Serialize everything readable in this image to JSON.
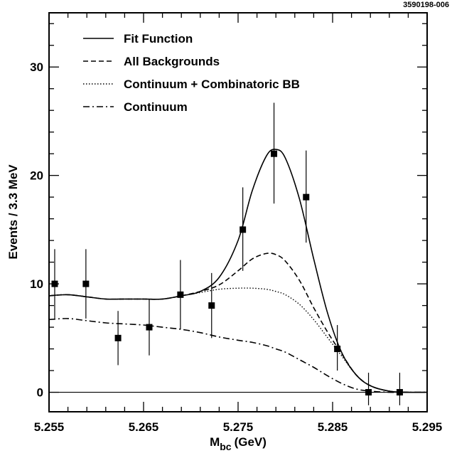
{
  "figure_id": "3590198-006",
  "chart_data": {
    "type": "scatter",
    "title": "",
    "xlabel_main": "M",
    "xlabel_sub": "bc",
    "xlabel_unit": "(GeV)",
    "ylabel": "Events / 3.3 MeV",
    "xlim": [
      5.255,
      5.295
    ],
    "ylim": [
      -1.8,
      35
    ],
    "x_tick_labels": [
      "5.255",
      "5.265",
      "5.275",
      "5.285",
      "5.295"
    ],
    "y_tick_labels": [
      "0",
      "10",
      "20",
      "30"
    ],
    "legend": [
      {
        "label": "Fit Function",
        "style": "solid"
      },
      {
        "label": "All Backgrounds",
        "style": "dashed"
      },
      {
        "label": "Continuum + Combinatoric BB",
        "style": "dotted"
      },
      {
        "label": "Continuum",
        "style": "dashdot"
      }
    ],
    "data_points": [
      {
        "x": 5.2556,
        "y": 10,
        "err_lo": 3.2,
        "err_hi": 3.2
      },
      {
        "x": 5.2589,
        "y": 10,
        "err_lo": 3.2,
        "err_hi": 3.2
      },
      {
        "x": 5.2623,
        "y": 5,
        "err_lo": 2.5,
        "err_hi": 2.5
      },
      {
        "x": 5.2656,
        "y": 6,
        "err_lo": 2.6,
        "err_hi": 2.6
      },
      {
        "x": 5.2689,
        "y": 9,
        "err_lo": 3.2,
        "err_hi": 3.2
      },
      {
        "x": 5.2722,
        "y": 8,
        "err_lo": 3.0,
        "err_hi": 3.0
      },
      {
        "x": 5.2755,
        "y": 15,
        "err_lo": 3.8,
        "err_hi": 3.9
      },
      {
        "x": 5.2788,
        "y": 22,
        "err_lo": 4.6,
        "err_hi": 4.7
      },
      {
        "x": 5.2822,
        "y": 18,
        "err_lo": 4.2,
        "err_hi": 4.3
      },
      {
        "x": 5.2855,
        "y": 4,
        "err_lo": 2.0,
        "err_hi": 2.2
      },
      {
        "x": 5.2888,
        "y": 0,
        "err_lo": 1.2,
        "err_hi": 1.8
      },
      {
        "x": 5.2921,
        "y": 0,
        "err_lo": 1.2,
        "err_hi": 1.8
      }
    ],
    "series": [
      {
        "style": "solid",
        "x": [
          5.255,
          5.257,
          5.259,
          5.261,
          5.263,
          5.265,
          5.267,
          5.269,
          5.271,
          5.273,
          5.275,
          5.2765,
          5.278,
          5.279,
          5.28,
          5.2815,
          5.283,
          5.2845,
          5.286,
          5.2875,
          5.289,
          5.291,
          5.293,
          5.295
        ],
        "y": [
          8.9,
          9.0,
          8.8,
          8.6,
          8.6,
          8.6,
          8.6,
          8.9,
          9.3,
          10.6,
          14.0,
          18.6,
          21.8,
          22.4,
          21.6,
          17.8,
          12.3,
          7.2,
          3.6,
          1.6,
          0.6,
          0.1,
          0.0,
          0.0
        ]
      },
      {
        "style": "dashed",
        "x": [
          5.255,
          5.257,
          5.259,
          5.261,
          5.263,
          5.265,
          5.267,
          5.269,
          5.271,
          5.273,
          5.275,
          5.2765,
          5.278,
          5.279,
          5.28,
          5.2815,
          5.283,
          5.2845,
          5.286,
          5.2875,
          5.289,
          5.291,
          5.293,
          5.295
        ],
        "y": [
          8.9,
          9.0,
          8.8,
          8.6,
          8.6,
          8.6,
          8.6,
          8.9,
          9.3,
          9.9,
          11.2,
          12.3,
          12.8,
          12.7,
          12.1,
          10.3,
          7.8,
          5.5,
          3.5,
          1.6,
          0.6,
          0.1,
          0.0,
          0.0
        ]
      },
      {
        "style": "dotted",
        "x": [
          5.255,
          5.257,
          5.259,
          5.261,
          5.263,
          5.265,
          5.267,
          5.269,
          5.271,
          5.273,
          5.275,
          5.2765,
          5.278,
          5.279,
          5.28,
          5.2815,
          5.283,
          5.2845,
          5.286,
          5.2875,
          5.289,
          5.291,
          5.293,
          5.295
        ],
        "y": [
          8.9,
          9.0,
          8.8,
          8.6,
          8.6,
          8.6,
          8.6,
          8.9,
          9.2,
          9.5,
          9.6,
          9.6,
          9.5,
          9.3,
          9.0,
          8.1,
          6.7,
          5.0,
          3.3,
          1.6,
          0.6,
          0.1,
          0.0,
          0.0
        ]
      },
      {
        "style": "dashdot",
        "x": [
          5.255,
          5.257,
          5.259,
          5.261,
          5.263,
          5.265,
          5.267,
          5.269,
          5.271,
          5.273,
          5.275,
          5.2765,
          5.278,
          5.279,
          5.28,
          5.2815,
          5.283,
          5.2845,
          5.286,
          5.2875,
          5.289,
          5.291,
          5.293,
          5.295
        ],
        "y": [
          6.7,
          6.8,
          6.6,
          6.4,
          6.3,
          6.2,
          6.0,
          5.8,
          5.5,
          5.1,
          4.8,
          4.6,
          4.3,
          4.0,
          3.7,
          3.0,
          2.3,
          1.5,
          0.8,
          0.3,
          0.1,
          0.0,
          0.0,
          0.0
        ]
      }
    ],
    "grid": false,
    "legend_position": "top-left"
  }
}
